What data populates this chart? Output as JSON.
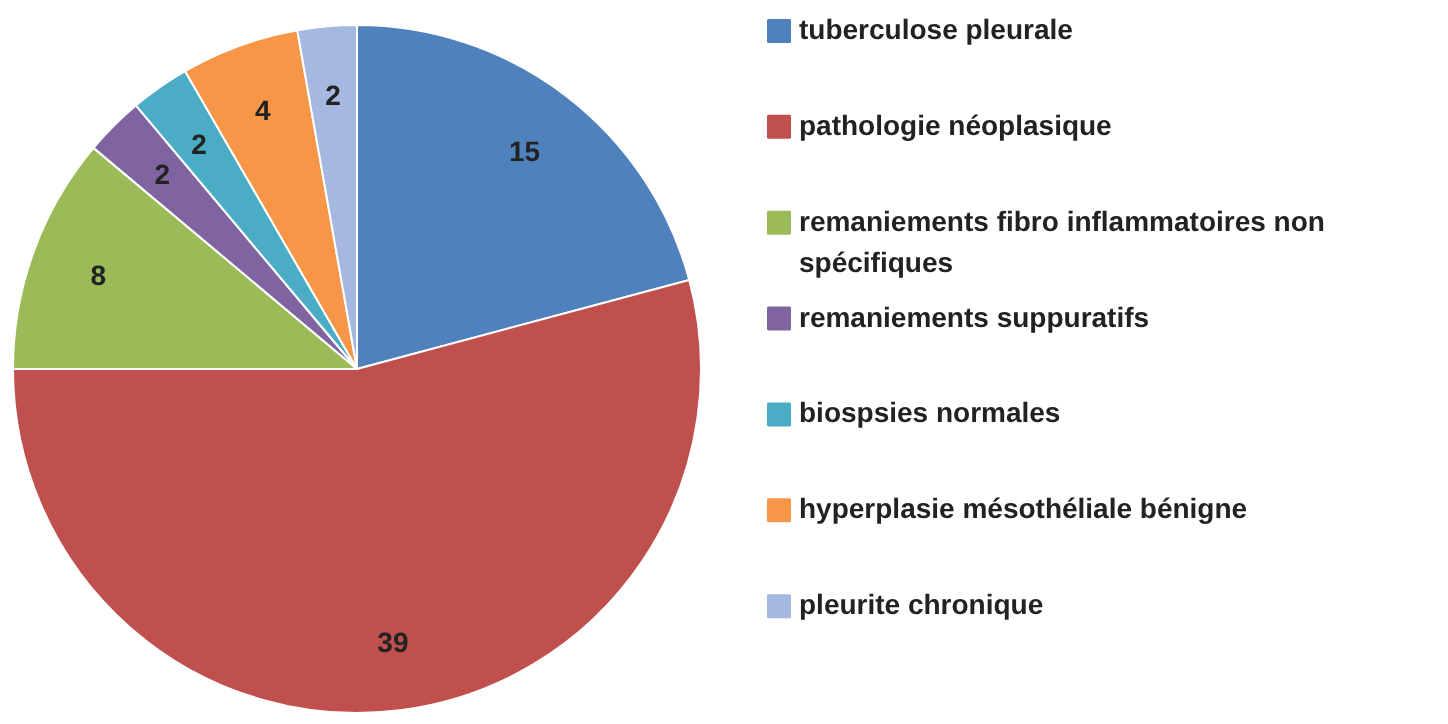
{
  "chart_data": {
    "type": "pie",
    "categories": [
      "tuberculose pleurale",
      "pathologie néoplasique",
      "remaniements fibro inflammatoires non spécifiques",
      "remaniements suppuratifs",
      "biospsies normales",
      "hyperplasie mésothéliale bénigne",
      "pleurite chronique"
    ],
    "values": [
      15,
      39,
      8,
      2,
      2,
      4,
      2
    ],
    "colors": [
      "#4f81bd",
      "#c0504d",
      "#9bbb59",
      "#8064a2",
      "#4bacc6",
      "#f79646",
      "#a5b8e0"
    ],
    "data_labels": true,
    "legend": "right"
  }
}
